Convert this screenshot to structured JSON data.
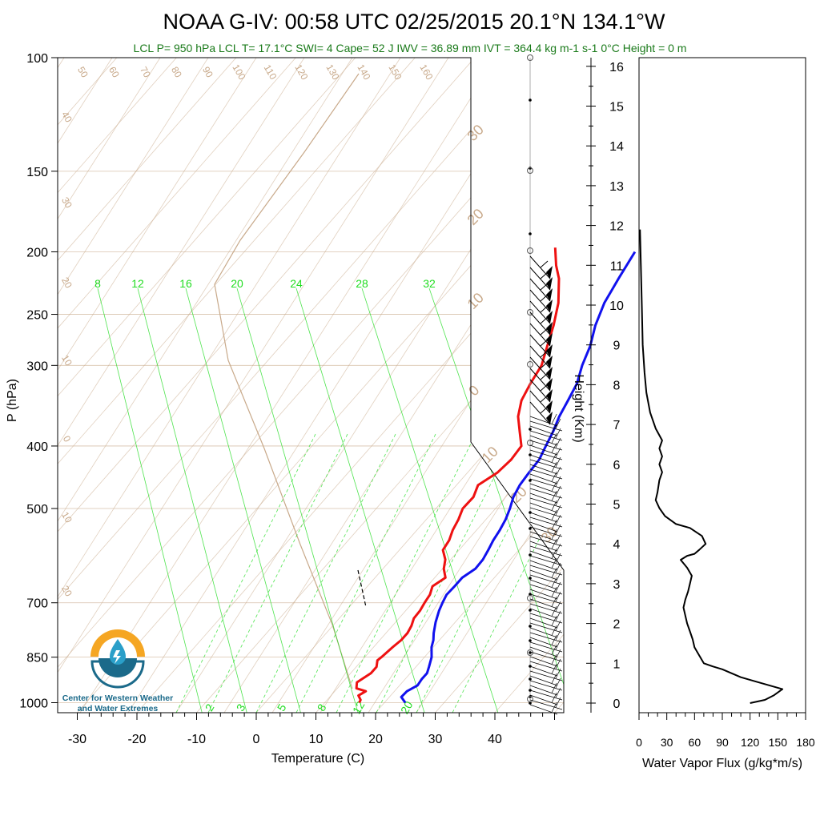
{
  "title": "NOAA G-IV: 00:58 UTC 02/25/2015  20.1°N 134.1°W",
  "subtitle": "LCL P= 950 hPa  LCL T= 17.1°C  SWI= 4  Cape= 52 J  IWV = 36.89 mm  IVT = 364.4 kg m-1 s-1  0°C Height = 0 m",
  "logo": {
    "line1": "Center for Western Weather",
    "line2": "and Water Extremes",
    "icon": "cw3e-water-drop-logo"
  },
  "colors": {
    "temperature": "#ee1111",
    "dewpoint": "#1111ee",
    "isotherm": "#c8a98a",
    "mixing_ratio": "#22dd22",
    "subtitle": "#1a7a1a"
  },
  "chart_data": [
    {
      "type": "line",
      "name": "skew-t",
      "title": "NOAA G-IV: 00:58 UTC 02/25/2015  20.1°N 134.1°W",
      "xlabel": "Temperature (C)",
      "ylabel": "P (hPa)",
      "xlim": [
        -33,
        52
      ],
      "ylim": [
        1050,
        100
      ],
      "yscale": "log",
      "pressure_ticks": [
        100,
        150,
        200,
        250,
        300,
        400,
        500,
        700,
        850,
        1000
      ],
      "temperature_ticks": [
        -30,
        -20,
        -10,
        0,
        10,
        20,
        30,
        40
      ],
      "height_km_ticks": [
        0,
        1,
        2,
        3,
        4,
        5,
        6,
        7,
        8,
        9,
        10,
        11,
        12,
        13,
        14,
        15,
        16
      ],
      "height_label": "Height (Km)",
      "mixing_ratio_labels_upper": [
        "8",
        "12",
        "16",
        "20",
        "24",
        "28",
        "32"
      ],
      "mixing_ratio_labels_lower": [
        "2",
        "3",
        "5",
        "8",
        "12",
        "20"
      ],
      "dry_adiabat_labels": [
        "50",
        "60",
        "70",
        "80",
        "90",
        "100",
        "110",
        "120",
        "130",
        "140",
        "150",
        "160"
      ],
      "left_temp_labels": [
        "40",
        "30",
        "20",
        "10",
        "0",
        "10",
        "20"
      ],
      "right_temp_labels": [
        "30",
        "20",
        "10",
        "0",
        "10",
        "20",
        "30"
      ],
      "series": [
        {
          "name": "",
          "color": "#ee1111",
          "points": [
            [
              1000,
              15.8
            ],
            [
              990,
              15.6
            ],
            [
              975,
              14.6
            ],
            [
              960,
              15.2
            ],
            [
              950,
              13.2
            ],
            [
              930,
              12.4
            ],
            [
              900,
              13.4
            ],
            [
              880,
              13.4
            ],
            [
              860,
              12.6
            ],
            [
              850,
              12.8
            ],
            [
              820,
              13.2
            ],
            [
              800,
              13.6
            ],
            [
              780,
              13.6
            ],
            [
              760,
              13.2
            ],
            [
              740,
              12.5
            ],
            [
              720,
              12.4
            ],
            [
              700,
              12.0
            ],
            [
              680,
              11.7
            ],
            [
              660,
              10.9
            ],
            [
              640,
              11.8
            ],
            [
              620,
              10.2
            ],
            [
              600,
              9.1
            ],
            [
              580,
              7.3
            ],
            [
              560,
              6.9
            ],
            [
              540,
              6.0
            ],
            [
              520,
              5.4
            ],
            [
              500,
              4.5
            ],
            [
              480,
              4.6
            ],
            [
              460,
              3.6
            ],
            [
              440,
              5.0
            ],
            [
              420,
              5.4
            ],
            [
              400,
              5.1
            ],
            [
              380,
              2.7
            ],
            [
              360,
              0.2
            ],
            [
              340,
              -1.6
            ],
            [
              320,
              -2.6
            ],
            [
              300,
              -3.4
            ],
            [
              280,
              -5.3
            ],
            [
              260,
              -7.3
            ],
            [
              240,
              -9.8
            ],
            [
              220,
              -13.3
            ],
            [
              210,
              -15.7
            ],
            [
              197,
              -18.5
            ]
          ]
        },
        {
          "name": "",
          "color": "#1111ee",
          "points": [
            [
              1000,
              23.5
            ],
            [
              980,
              22.0
            ],
            [
              960,
              22.1
            ],
            [
              940,
              23.0
            ],
            [
              920,
              22.8
            ],
            [
              900,
              22.8
            ],
            [
              880,
              22.2
            ],
            [
              850,
              21.2
            ],
            [
              820,
              19.7
            ],
            [
              800,
              19.0
            ],
            [
              780,
              18.0
            ],
            [
              750,
              16.7
            ],
            [
              720,
              15.6
            ],
            [
              700,
              15.0
            ],
            [
              680,
              14.5
            ],
            [
              660,
              14.6
            ],
            [
              640,
              14.6
            ],
            [
              620,
              15.5
            ],
            [
              600,
              15.4
            ],
            [
              580,
              14.9
            ],
            [
              560,
              14.3
            ],
            [
              540,
              13.9
            ],
            [
              520,
              13.3
            ],
            [
              500,
              12.4
            ],
            [
              480,
              11.3
            ],
            [
              460,
              10.6
            ],
            [
              440,
              10.3
            ],
            [
              420,
              10.1
            ],
            [
              400,
              9.2
            ],
            [
              380,
              8.3
            ],
            [
              360,
              7.1
            ],
            [
              340,
              6.2
            ],
            [
              320,
              5.2
            ],
            [
              300,
              3.4
            ],
            [
              280,
              1.9
            ],
            [
              260,
              -0.3
            ],
            [
              240,
              -2.1
            ],
            [
              220,
              -3.3
            ],
            [
              200,
              -4.5
            ]
          ]
        }
      ]
    },
    {
      "type": "line",
      "name": "water-vapor-flux",
      "xlabel": "Water Vapor Flux (g/kg*m/s)",
      "xlim": [
        0,
        180
      ],
      "xticks": [
        0,
        30,
        60,
        90,
        120,
        150,
        180
      ],
      "ylim": [
        -0.2,
        16.4
      ],
      "series": [
        {
          "name": "",
          "color": "#000000",
          "points": [
            [
              120,
              0.0
            ],
            [
              136,
              0.08
            ],
            [
              146,
              0.2
            ],
            [
              155,
              0.35
            ],
            [
              125,
              0.55
            ],
            [
              110,
              0.65
            ],
            [
              90,
              0.85
            ],
            [
              80,
              0.92
            ],
            [
              70,
              1.0
            ],
            [
              65,
              1.2
            ],
            [
              60,
              1.4
            ],
            [
              58,
              1.6
            ],
            [
              55,
              1.8
            ],
            [
              52,
              2.0
            ],
            [
              50,
              2.2
            ],
            [
              48,
              2.4
            ],
            [
              50,
              2.6
            ],
            [
              53,
              2.8
            ],
            [
              55,
              3.0
            ],
            [
              57,
              3.2
            ],
            [
              52,
              3.4
            ],
            [
              45,
              3.6
            ],
            [
              52,
              3.7
            ],
            [
              60,
              3.75
            ],
            [
              65,
              3.85
            ],
            [
              72,
              4.0
            ],
            [
              68,
              4.2
            ],
            [
              55,
              4.4
            ],
            [
              40,
              4.5
            ],
            [
              28,
              4.7
            ],
            [
              22,
              4.9
            ],
            [
              18,
              5.1
            ],
            [
              20,
              5.3
            ],
            [
              22,
              5.6
            ],
            [
              25,
              5.8
            ],
            [
              22,
              6.0
            ],
            [
              25,
              6.2
            ],
            [
              22,
              6.4
            ],
            [
              25,
              6.6
            ],
            [
              18,
              6.9
            ],
            [
              12,
              7.3
            ],
            [
              8,
              7.8
            ],
            [
              6,
              8.3
            ],
            [
              4,
              9.0
            ],
            [
              3,
              10.0
            ],
            [
              2,
              11.0
            ],
            [
              1,
              11.9
            ]
          ]
        }
      ]
    }
  ]
}
